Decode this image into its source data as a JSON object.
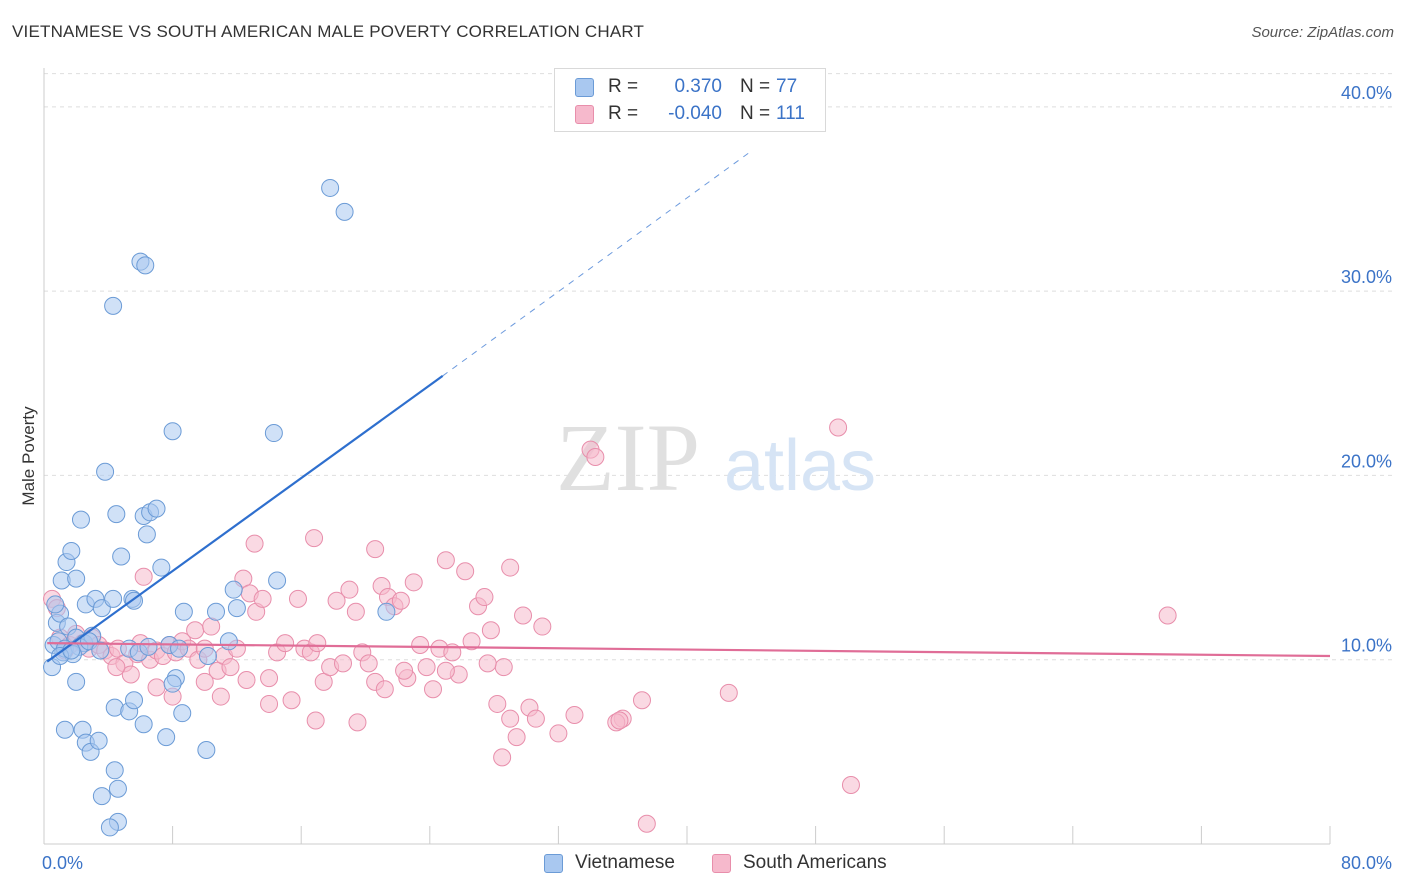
{
  "title": "VIETNAMESE VS SOUTH AMERICAN MALE POVERTY CORRELATION CHART",
  "source": "Source: ZipAtlas.com",
  "watermark": {
    "zip": "ZIP",
    "atlas": "atlas"
  },
  "colors": {
    "vietnamese_fill": "#a9c8f0",
    "vietnamese_stroke": "#6b9bd6",
    "vietnamese_line": "#2e6fce",
    "south_american_fill": "#f6b9cc",
    "south_american_stroke": "#e88eab",
    "south_american_line": "#e06d97",
    "axis_text": "#3b73c7",
    "grid": "#dedede"
  },
  "legend": {
    "rows": [
      {
        "r_label": "R =",
        "r_value": "0.370",
        "n_label": "N =",
        "n_value": "77"
      },
      {
        "r_label": "R =",
        "r_value": "-0.040",
        "n_label": "N =",
        "n_value": "111"
      }
    ]
  },
  "bottom_legend": [
    "Vietnamese",
    "South Americans"
  ],
  "chart_data": {
    "type": "scatter",
    "ylabel": "Male Poverty",
    "xlim": [
      0,
      80
    ],
    "ylim": [
      0,
      42
    ],
    "x_tick_labels": [
      "0.0%",
      "80.0%"
    ],
    "y_ticks": [
      10,
      20,
      30,
      40
    ],
    "y_tick_labels": [
      "10.0%",
      "20.0%",
      "30.0%",
      "40.0%"
    ],
    "grid": true,
    "series": [
      {
        "name": "Vietnamese",
        "trend": {
          "x1": 0.2,
          "y1": 9.9,
          "x2": 24.8,
          "y2": 25.4,
          "dash_to_x": 44,
          "dash_to_y": 37.6
        },
        "points": [
          [
            0.6,
            10.8
          ],
          [
            0.8,
            12.0
          ],
          [
            1.2,
            10.4
          ],
          [
            0.9,
            11.0
          ],
          [
            1.0,
            12.5
          ],
          [
            1.5,
            11.8
          ],
          [
            2.0,
            11.2
          ],
          [
            1.3,
            10.6
          ],
          [
            2.5,
            10.9
          ],
          [
            3.0,
            11.3
          ],
          [
            2.2,
            10.7
          ],
          [
            0.5,
            9.6
          ],
          [
            1.8,
            10.3
          ],
          [
            2.8,
            11.0
          ],
          [
            3.5,
            10.5
          ],
          [
            0.7,
            13.0
          ],
          [
            1.1,
            14.3
          ],
          [
            1.4,
            15.3
          ],
          [
            1.7,
            15.9
          ],
          [
            2.0,
            14.4
          ],
          [
            2.3,
            17.6
          ],
          [
            2.6,
            13.0
          ],
          [
            3.2,
            13.3
          ],
          [
            3.6,
            12.8
          ],
          [
            4.3,
            13.3
          ],
          [
            4.8,
            15.6
          ],
          [
            5.3,
            10.6
          ],
          [
            4.5,
            17.9
          ],
          [
            5.5,
            13.3
          ],
          [
            5.6,
            13.2
          ],
          [
            6.2,
            17.8
          ],
          [
            6.4,
            16.8
          ],
          [
            6.6,
            18.0
          ],
          [
            7.0,
            18.2
          ],
          [
            7.3,
            15.0
          ],
          [
            5.9,
            10.4
          ],
          [
            6.5,
            10.7
          ],
          [
            7.8,
            10.8
          ],
          [
            8.4,
            10.6
          ],
          [
            8.7,
            12.6
          ],
          [
            8.2,
            9.0
          ],
          [
            8.0,
            8.7
          ],
          [
            10.2,
            10.2
          ],
          [
            10.7,
            12.6
          ],
          [
            11.5,
            11.0
          ],
          [
            11.8,
            13.8
          ],
          [
            12.0,
            12.8
          ],
          [
            14.5,
            14.3
          ],
          [
            14.3,
            22.3
          ],
          [
            3.8,
            20.2
          ],
          [
            8.0,
            22.4
          ],
          [
            4.3,
            29.2
          ],
          [
            6.0,
            31.6
          ],
          [
            6.3,
            31.4
          ],
          [
            17.8,
            35.6
          ],
          [
            18.7,
            34.3
          ],
          [
            21.3,
            12.6
          ],
          [
            1.3,
            6.2
          ],
          [
            2.4,
            6.2
          ],
          [
            2.6,
            5.5
          ],
          [
            2.9,
            5.0
          ],
          [
            3.4,
            5.6
          ],
          [
            4.4,
            7.4
          ],
          [
            4.4,
            4.0
          ],
          [
            3.6,
            2.6
          ],
          [
            4.6,
            3.0
          ],
          [
            4.6,
            1.2
          ],
          [
            4.1,
            0.9
          ],
          [
            5.3,
            7.2
          ],
          [
            5.6,
            7.8
          ],
          [
            6.2,
            6.5
          ],
          [
            7.6,
            5.8
          ],
          [
            8.6,
            7.1
          ],
          [
            10.1,
            5.1
          ],
          [
            2.0,
            8.8
          ],
          [
            1.0,
            10.2
          ],
          [
            1.7,
            10.5
          ]
        ]
      },
      {
        "name": "South Americans",
        "trend": {
          "x1": 0.2,
          "y1": 10.9,
          "x2": 80,
          "y2": 10.2
        },
        "points": [
          [
            0.5,
            13.3
          ],
          [
            0.8,
            12.8
          ],
          [
            1.0,
            11.2
          ],
          [
            1.3,
            10.5
          ],
          [
            1.6,
            10.8
          ],
          [
            2.0,
            11.4
          ],
          [
            2.4,
            10.9
          ],
          [
            2.8,
            10.6
          ],
          [
            3.0,
            11.2
          ],
          [
            3.4,
            10.8
          ],
          [
            3.8,
            10.5
          ],
          [
            4.2,
            10.2
          ],
          [
            4.6,
            10.6
          ],
          [
            5.0,
            9.8
          ],
          [
            5.4,
            9.2
          ],
          [
            5.8,
            10.3
          ],
          [
            6.0,
            10.9
          ],
          [
            6.2,
            14.5
          ],
          [
            6.6,
            10.0
          ],
          [
            7.0,
            10.5
          ],
          [
            7.4,
            10.2
          ],
          [
            7.8,
            10.8
          ],
          [
            8.2,
            10.4
          ],
          [
            8.6,
            11.0
          ],
          [
            9.0,
            10.6
          ],
          [
            9.4,
            11.6
          ],
          [
            9.6,
            10.0
          ],
          [
            10.0,
            8.8
          ],
          [
            10.4,
            11.8
          ],
          [
            10.8,
            9.4
          ],
          [
            11.2,
            10.2
          ],
          [
            11.6,
            9.6
          ],
          [
            12.0,
            10.6
          ],
          [
            12.4,
            14.4
          ],
          [
            12.8,
            13.6
          ],
          [
            13.2,
            12.6
          ],
          [
            13.6,
            13.3
          ],
          [
            14.0,
            9.0
          ],
          [
            14.5,
            10.4
          ],
          [
            15.0,
            10.9
          ],
          [
            15.4,
            7.8
          ],
          [
            15.8,
            13.3
          ],
          [
            16.2,
            10.6
          ],
          [
            16.6,
            10.4
          ],
          [
            17.0,
            10.9
          ],
          [
            17.4,
            8.8
          ],
          [
            17.8,
            9.6
          ],
          [
            18.2,
            13.2
          ],
          [
            18.6,
            9.8
          ],
          [
            19.0,
            13.8
          ],
          [
            19.4,
            12.6
          ],
          [
            19.8,
            10.4
          ],
          [
            20.2,
            9.8
          ],
          [
            20.6,
            8.8
          ],
          [
            21.0,
            14.0
          ],
          [
            21.4,
            13.4
          ],
          [
            21.8,
            12.9
          ],
          [
            22.2,
            13.2
          ],
          [
            22.6,
            9.0
          ],
          [
            23.0,
            14.2
          ],
          [
            23.4,
            10.8
          ],
          [
            23.8,
            9.6
          ],
          [
            24.2,
            8.4
          ],
          [
            24.6,
            10.6
          ],
          [
            25.0,
            15.4
          ],
          [
            25.4,
            10.4
          ],
          [
            25.8,
            9.2
          ],
          [
            26.2,
            14.8
          ],
          [
            26.6,
            11.0
          ],
          [
            27.0,
            12.9
          ],
          [
            27.4,
            13.4
          ],
          [
            27.8,
            11.6
          ],
          [
            28.2,
            7.6
          ],
          [
            28.6,
            9.6
          ],
          [
            29.0,
            15.0
          ],
          [
            29.4,
            5.8
          ],
          [
            29.8,
            12.4
          ],
          [
            30.2,
            7.4
          ],
          [
            30.6,
            6.8
          ],
          [
            31.0,
            11.8
          ],
          [
            32.0,
            6.0
          ],
          [
            33.0,
            7.0
          ],
          [
            34.0,
            21.4
          ],
          [
            34.3,
            21.0
          ],
          [
            36.0,
            6.8
          ],
          [
            37.2,
            7.8
          ],
          [
            42.6,
            8.2
          ],
          [
            49.4,
            22.6
          ],
          [
            50.2,
            3.2
          ],
          [
            69.9,
            12.4
          ],
          [
            20.6,
            16.0
          ],
          [
            16.8,
            16.6
          ],
          [
            13.1,
            16.3
          ],
          [
            10.0,
            10.6
          ],
          [
            8.0,
            8.0
          ],
          [
            7.0,
            8.5
          ],
          [
            11.0,
            8.0
          ],
          [
            12.6,
            8.9
          ],
          [
            14.0,
            7.6
          ],
          [
            16.9,
            6.7
          ],
          [
            19.5,
            6.6
          ],
          [
            21.2,
            8.4
          ],
          [
            22.4,
            9.4
          ],
          [
            25.0,
            9.4
          ],
          [
            27.6,
            9.8
          ],
          [
            29.0,
            6.8
          ],
          [
            28.5,
            4.7
          ],
          [
            35.6,
            6.6
          ],
          [
            35.8,
            6.7
          ],
          [
            37.5,
            1.1
          ],
          [
            4.5,
            9.6
          ]
        ]
      }
    ]
  }
}
